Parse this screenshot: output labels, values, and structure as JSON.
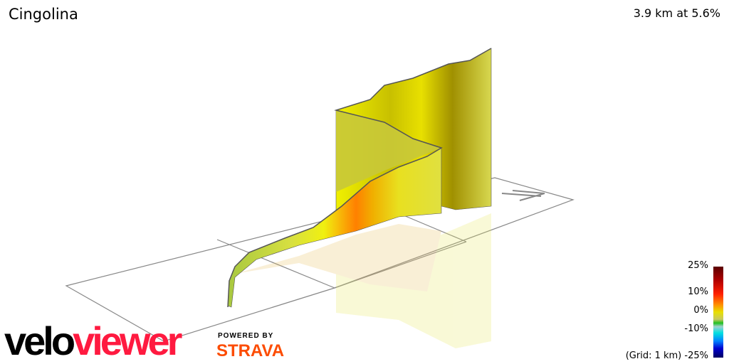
{
  "title": "Cingolina",
  "summary": "3.9 km at 5.6%",
  "chart_data": {
    "type": "3d-elevation-profile",
    "title": "Cingolina",
    "distance_km": 3.9,
    "avg_gradient_pct": 5.6,
    "grid_label": "(Grid: 1 km)",
    "colorscale": {
      "ticks": [
        "25%",
        "10%",
        "0%",
        "-10%",
        "-25%"
      ],
      "colors": [
        "#5a0000",
        "#ff2000",
        "#e8e000",
        "#20c020",
        "#00e0e0",
        "#0000d0",
        "#000060"
      ]
    }
  },
  "branding": {
    "velo": "velo",
    "viewer": "viewer",
    "powered_by": "POWERED BY",
    "strava": "STRAVA"
  }
}
